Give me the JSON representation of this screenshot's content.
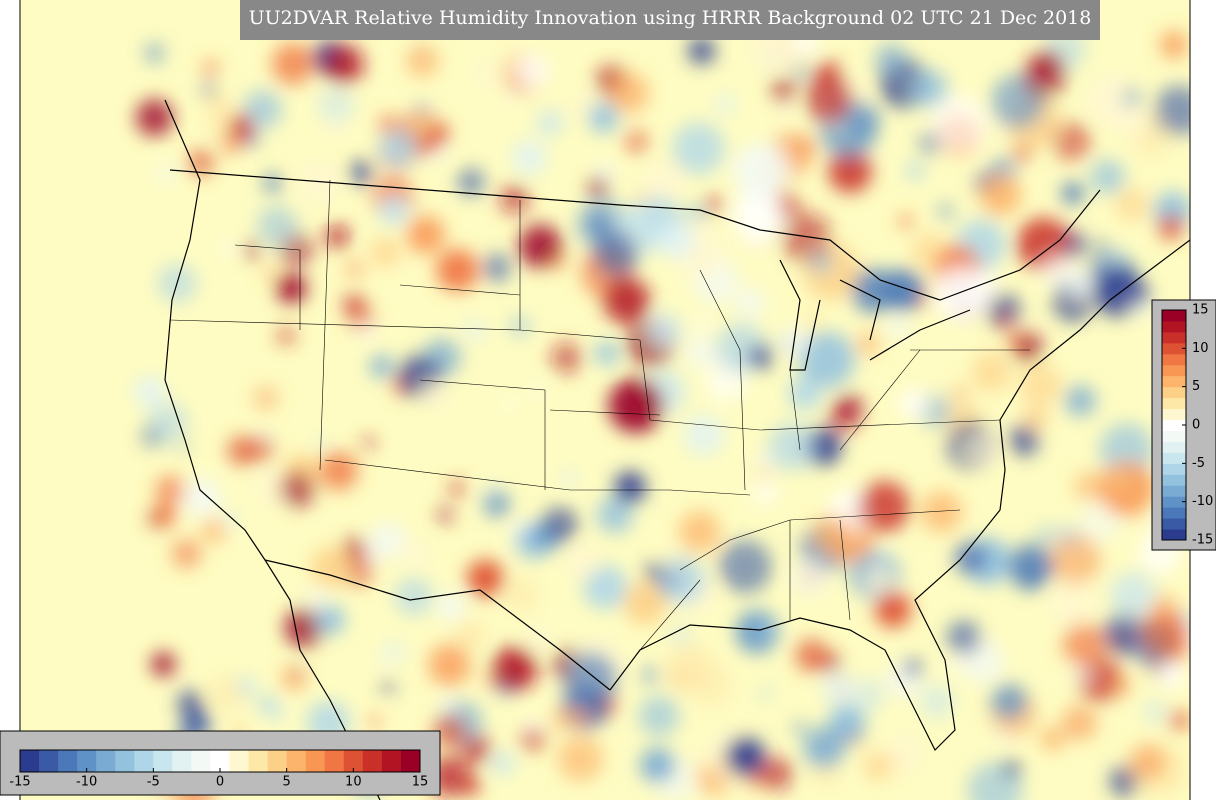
{
  "title": "UU2DVAR Relative Humidity Innovation using HRRR Background 02 UTC 21 Dec 2018",
  "colormap": [
    "#2b3b8e",
    "#3a5aa6",
    "#4a78b8",
    "#5f92c6",
    "#79abd3",
    "#93c2df",
    "#afd6e8",
    "#c9e6ef",
    "#e2f2f3",
    "#f3f9f4",
    "#ffffff",
    "#fff7d0",
    "#fee8a8",
    "#fdd088",
    "#fcb46c",
    "#f89654",
    "#f07644",
    "#de5234",
    "#c9302a",
    "#b31424",
    "#9a0026"
  ],
  "colorbars": [
    {
      "orientation": "vertical",
      "range": [
        -15,
        15
      ],
      "ticks": [
        15,
        10,
        5,
        0,
        -5,
        -10,
        -15
      ]
    },
    {
      "orientation": "horizontal",
      "range": [
        -15,
        15
      ],
      "ticks": [
        -15,
        -10,
        -5,
        0,
        5,
        10,
        15
      ]
    }
  ]
}
